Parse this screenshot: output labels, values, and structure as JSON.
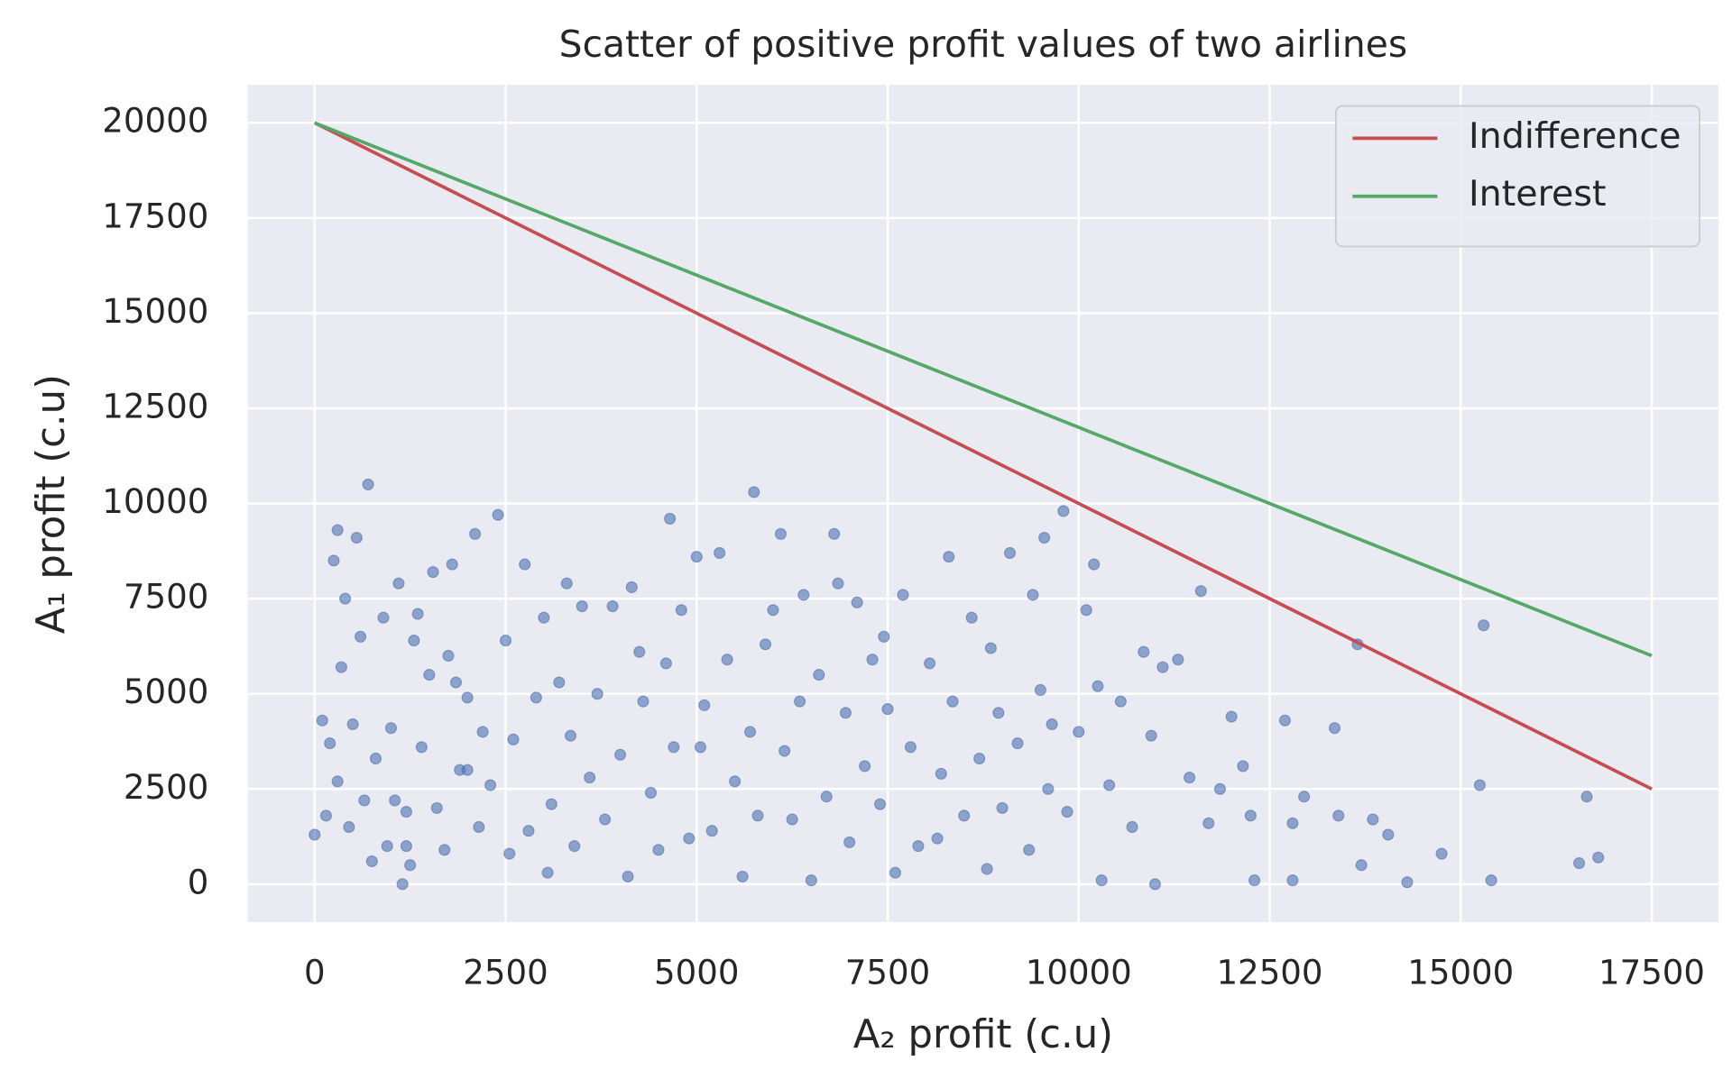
{
  "chart_data": {
    "type": "scatter",
    "title": "Scatter of positive profit values of two airlines",
    "x_label": "A₂ profit (c.u)",
    "y_label": "A₁ profit (c.u)",
    "xlim": [
      -875,
      18375
    ],
    "ylim": [
      -1000,
      21000
    ],
    "xticks": [
      0,
      2500,
      5000,
      7500,
      10000,
      12500,
      15000,
      17500
    ],
    "yticks": [
      0,
      2500,
      5000,
      7500,
      10000,
      12500,
      15000,
      17500,
      20000
    ],
    "grid": true,
    "legend": "upper right",
    "points": {
      "color": "#4c72b0",
      "x": [
        0,
        100,
        150,
        200,
        250,
        300,
        300,
        350,
        400,
        450,
        500,
        550,
        600,
        650,
        700,
        750,
        800,
        900,
        950,
        1000,
        1050,
        1100,
        1150,
        1200,
        1250,
        1300,
        1350,
        1400,
        1500,
        1550,
        1600,
        1700,
        1750,
        1800,
        1850,
        1900,
        2000,
        2100,
        2150,
        2200,
        2300,
        2400,
        2500,
        2550,
        2600,
        2750,
        2800,
        2900,
        3000,
        3050,
        3100,
        3200,
        3300,
        3350,
        3400,
        3500,
        3600,
        3700,
        3800,
        3900,
        4000,
        4100,
        4150,
        4250,
        4300,
        4400,
        4500,
        4600,
        4650,
        4700,
        4800,
        4900,
        5000,
        5050,
        5200,
        5300,
        5400,
        5500,
        5600,
        5700,
        5750,
        5800,
        5900,
        6000,
        6100,
        6150,
        6250,
        6350,
        6400,
        6500,
        6600,
        6700,
        6800,
        6850,
        6950,
        7000,
        7100,
        7200,
        7300,
        7400,
        7450,
        7500,
        7600,
        7700,
        7800,
        7900,
        8050,
        8200,
        8300,
        8350,
        8500,
        8600,
        8700,
        8800,
        8850,
        8950,
        9000,
        9100,
        9200,
        9350,
        9400,
        9500,
        9550,
        9650,
        9800,
        9850,
        10000,
        10100,
        10200,
        10250,
        10300,
        10400,
        10550,
        10700,
        10850,
        10950,
        11000,
        11100,
        11300,
        11450,
        11600,
        11700,
        11850,
        12000,
        12150,
        12250,
        12300,
        12700,
        12800,
        12950,
        13350,
        13400,
        13650,
        13700,
        13850,
        14050,
        14300,
        14750,
        15250,
        15300,
        15400,
        16550,
        16650,
        16800,
        12800,
        9600,
        8150,
        5100,
        2000,
        1200
      ],
      "values": [
        1300,
        4300,
        1800,
        3700,
        8500,
        9300,
        2700,
        5700,
        7500,
        1500,
        4200,
        9100,
        6500,
        2200,
        10500,
        600,
        3300,
        7000,
        1000,
        4100,
        2200,
        7900,
        0,
        1900,
        500,
        6400,
        7100,
        3600,
        5500,
        8200,
        2000,
        900,
        6000,
        8400,
        5300,
        3000,
        4900,
        9200,
        1500,
        4000,
        2600,
        9700,
        6400,
        800,
        3800,
        8400,
        1400,
        4900,
        7000,
        300,
        2100,
        5300,
        7900,
        3900,
        1000,
        7300,
        2800,
        5000,
        1700,
        7300,
        3400,
        200,
        7800,
        6100,
        4800,
        2400,
        900,
        5800,
        9600,
        3600,
        7200,
        1200,
        8600,
        3600,
        1400,
        8700,
        5900,
        2700,
        200,
        4000,
        10300,
        1800,
        6300,
        7200,
        9200,
        3500,
        1700,
        4800,
        7600,
        100,
        5500,
        2300,
        9200,
        7900,
        4500,
        1100,
        7400,
        3100,
        5900,
        2100,
        6500,
        4600,
        300,
        7600,
        3600,
        1000,
        5800,
        2900,
        8600,
        4800,
        1800,
        7000,
        3300,
        400,
        6200,
        4500,
        2000,
        8700,
        3700,
        900,
        7600,
        5100,
        9100,
        4200,
        9800,
        1900,
        4000,
        7200,
        8400,
        5200,
        100,
        2600,
        4800,
        1500,
        6100,
        3900,
        0,
        5700,
        5900,
        2800,
        7700,
        1600,
        2500,
        4400,
        3100,
        1800,
        100,
        4300,
        1600,
        2300,
        4100,
        1800,
        6300,
        500,
        1700,
        1300,
        50,
        800,
        2600,
        6800,
        100,
        550,
        2300,
        700,
        100,
        2500,
        1200,
        4700,
        3000,
        1000
      ]
    },
    "series": [
      {
        "name": "Indifference",
        "color": "#c44e52",
        "x": [
          0,
          17500
        ],
        "values": [
          20000,
          2500
        ]
      },
      {
        "name": "Interest",
        "color": "#55a868",
        "x": [
          0,
          17500
        ],
        "values": [
          20000,
          6000
        ]
      }
    ]
  }
}
